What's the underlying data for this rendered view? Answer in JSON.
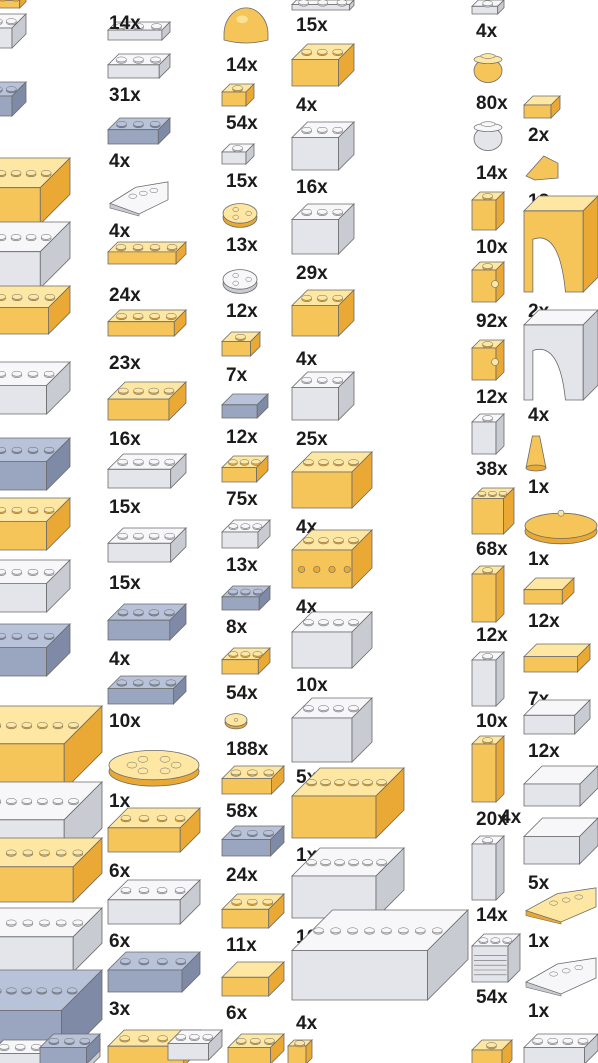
{
  "palette": {
    "yellow_top": "#fde7a3",
    "yellow_front": "#f5c55a",
    "yellow_side": "#e9a934",
    "white_top": "#f7f7f9",
    "white_front": "#e4e5ea",
    "white_side": "#c9cbd2",
    "grey_top": "#b8c2d8",
    "grey_front": "#9aa6c0",
    "grey_side": "#7e8aa6",
    "outline": "#6b6b6b",
    "text": "#1b1b1b"
  },
  "parts": [
    {
      "count": "14x",
      "color": "white",
      "shape": "plate"
    },
    {
      "count": "31x",
      "color": "white",
      "shape": "plate"
    },
    {
      "count": "4x",
      "color": "grey",
      "shape": "plate"
    },
    {
      "count": "4x",
      "color": "white",
      "shape": "wedge-plate"
    },
    {
      "count": "24x",
      "color": "yellow",
      "shape": "plate"
    },
    {
      "count": "23x",
      "color": "yellow",
      "shape": "plate"
    },
    {
      "count": "16x",
      "color": "yellow",
      "shape": "plate"
    },
    {
      "count": "15x",
      "color": "white",
      "shape": "plate"
    },
    {
      "count": "15x",
      "color": "white",
      "shape": "plate"
    },
    {
      "count": "4x",
      "color": "grey",
      "shape": "plate"
    },
    {
      "count": "10x",
      "color": "grey",
      "shape": "plate"
    },
    {
      "count": "1x",
      "color": "yellow",
      "shape": "round-plate"
    },
    {
      "count": "6x",
      "color": "yellow",
      "shape": "plate"
    },
    {
      "count": "6x",
      "color": "white",
      "shape": "plate"
    },
    {
      "count": "3x",
      "color": "grey",
      "shape": "plate"
    },
    {
      "count": "14x",
      "color": "yellow",
      "shape": "dome"
    },
    {
      "count": "54x",
      "color": "yellow",
      "shape": "plate"
    },
    {
      "count": "15x",
      "color": "white",
      "shape": "plate"
    },
    {
      "count": "13x",
      "color": "yellow",
      "shape": "round-plate"
    },
    {
      "count": "12x",
      "color": "white",
      "shape": "round-plate"
    },
    {
      "count": "7x",
      "color": "yellow",
      "shape": "plate"
    },
    {
      "count": "12x",
      "color": "grey",
      "shape": "tile"
    },
    {
      "count": "75x",
      "color": "yellow",
      "shape": "plate"
    },
    {
      "count": "13x",
      "color": "white",
      "shape": "plate"
    },
    {
      "count": "8x",
      "color": "grey",
      "shape": "plate"
    },
    {
      "count": "54x",
      "color": "yellow",
      "shape": "plate"
    },
    {
      "count": "188x",
      "color": "yellow",
      "shape": "round-stud"
    },
    {
      "count": "58x",
      "color": "yellow",
      "shape": "plate"
    },
    {
      "count": "24x",
      "color": "grey",
      "shape": "plate"
    },
    {
      "count": "11x",
      "color": "yellow",
      "shape": "plate"
    },
    {
      "count": "6x",
      "color": "yellow",
      "shape": "tile"
    },
    {
      "count": "15x",
      "color": "white",
      "shape": "brick"
    },
    {
      "count": "4x",
      "color": "yellow",
      "shape": "brick"
    },
    {
      "count": "16x",
      "color": "white",
      "shape": "brick"
    },
    {
      "count": "29x",
      "color": "white",
      "shape": "brick"
    },
    {
      "count": "4x",
      "color": "yellow",
      "shape": "brick"
    },
    {
      "count": "25x",
      "color": "white",
      "shape": "brick"
    },
    {
      "count": "4x",
      "color": "yellow",
      "shape": "brick"
    },
    {
      "count": "4x",
      "color": "yellow",
      "shape": "technic-brick"
    },
    {
      "count": "10x",
      "color": "white",
      "shape": "brick"
    },
    {
      "count": "5x",
      "color": "white",
      "shape": "brick"
    },
    {
      "count": "1x",
      "color": "yellow",
      "shape": "brick"
    },
    {
      "count": "10x",
      "color": "white",
      "shape": "brick"
    },
    {
      "count": "4x",
      "color": "white",
      "shape": "brick"
    },
    {
      "count": "4x",
      "color": "white",
      "shape": "brick"
    },
    {
      "count": "80x",
      "color": "yellow",
      "shape": "round-brick"
    },
    {
      "count": "14x",
      "color": "white",
      "shape": "round-brick"
    },
    {
      "count": "10x",
      "color": "yellow",
      "shape": "brick"
    },
    {
      "count": "92x",
      "color": "yellow",
      "shape": "side-stud-brick"
    },
    {
      "count": "12x",
      "color": "yellow",
      "shape": "clip-brick"
    },
    {
      "count": "38x",
      "color": "white",
      "shape": "brick"
    },
    {
      "count": "68x",
      "color": "yellow",
      "shape": "brick"
    },
    {
      "count": "12x",
      "color": "yellow",
      "shape": "brick"
    },
    {
      "count": "10x",
      "color": "white",
      "shape": "tall-brick"
    },
    {
      "count": "20x",
      "color": "yellow",
      "shape": "tall-brick"
    },
    {
      "count": "14x",
      "color": "white",
      "shape": "tall-brick"
    },
    {
      "count": "54x",
      "color": "white",
      "shape": "grille-brick"
    },
    {
      "count": "2x",
      "color": "yellow",
      "shape": "tile"
    },
    {
      "count": "18x",
      "color": "yellow",
      "shape": "slope"
    },
    {
      "count": "2x",
      "color": "yellow",
      "shape": "arch"
    },
    {
      "count": "4x",
      "color": "white",
      "shape": "arch"
    },
    {
      "count": "1x",
      "color": "yellow",
      "shape": "cone"
    },
    {
      "count": "1x",
      "color": "yellow",
      "shape": "dish"
    },
    {
      "count": "12x",
      "color": "yellow",
      "shape": "tile"
    },
    {
      "count": "7x",
      "color": "yellow",
      "shape": "tile"
    },
    {
      "count": "12x",
      "color": "white",
      "shape": "tile"
    },
    {
      "count": "4x",
      "color": "white",
      "shape": "tile"
    },
    {
      "count": "5x",
      "color": "white",
      "shape": "tile"
    },
    {
      "count": "1x",
      "color": "yellow",
      "shape": "wedge-plate"
    },
    {
      "count": "1x",
      "color": "white",
      "shape": "wedge-plate"
    }
  ]
}
